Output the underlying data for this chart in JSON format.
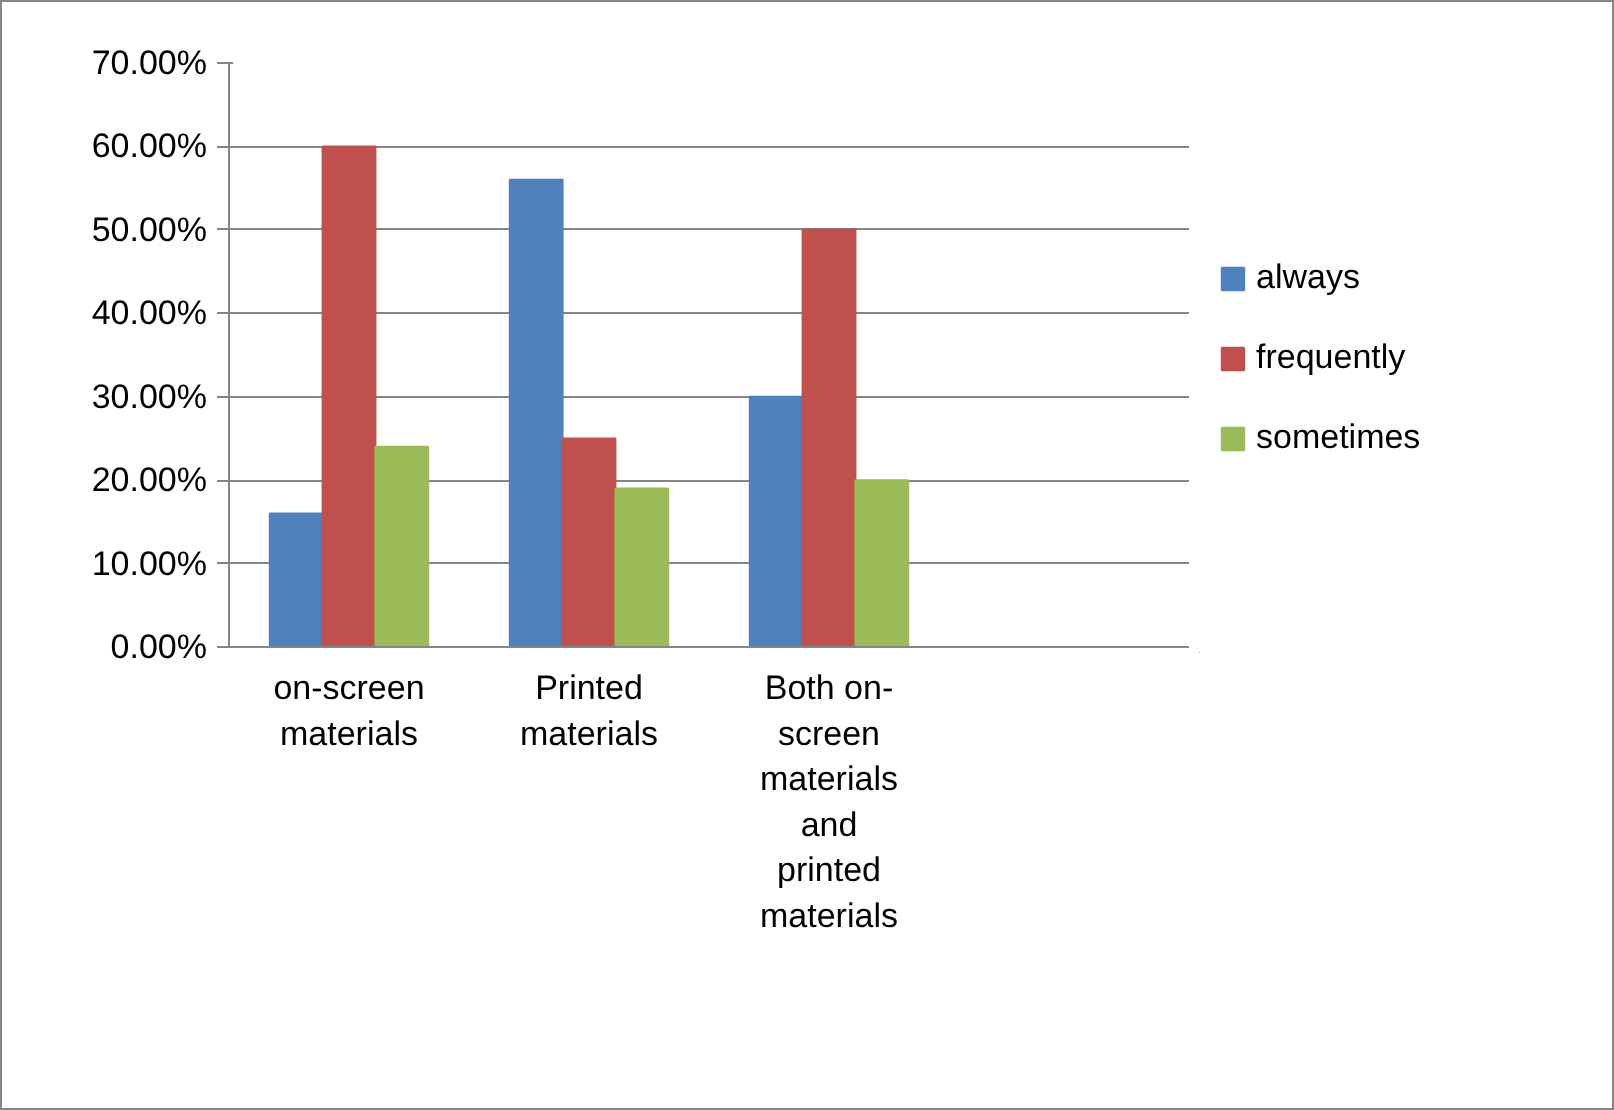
{
  "chart_data": {
    "type": "bar",
    "categories": [
      "on-screen materials",
      "Printed materials",
      "Both on-screen materials and printed materials",
      null
    ],
    "series": [
      {
        "name": "always",
        "color": "#4f81bd",
        "values": [
          16,
          56,
          30,
          null
        ]
      },
      {
        "name": "frequently",
        "color": "#c0504d",
        "values": [
          60,
          25,
          50,
          null
        ]
      },
      {
        "name": "sometimes",
        "color": "#9bbb59",
        "values": [
          24,
          19,
          20,
          null
        ]
      }
    ],
    "ylim": [
      0,
      70
    ],
    "yticks": [
      {
        "value": 0,
        "label": "0.00%"
      },
      {
        "value": 10,
        "label": "10.00%"
      },
      {
        "value": 20,
        "label": "20.00%"
      },
      {
        "value": 30,
        "label": "30.00%"
      },
      {
        "value": 40,
        "label": "40.00%"
      },
      {
        "value": 50,
        "label": "50.00%"
      },
      {
        "value": 60,
        "label": "60.00%"
      },
      {
        "value": 70,
        "label": "70.00%"
      }
    ],
    "grid": "y",
    "legend": "right"
  }
}
